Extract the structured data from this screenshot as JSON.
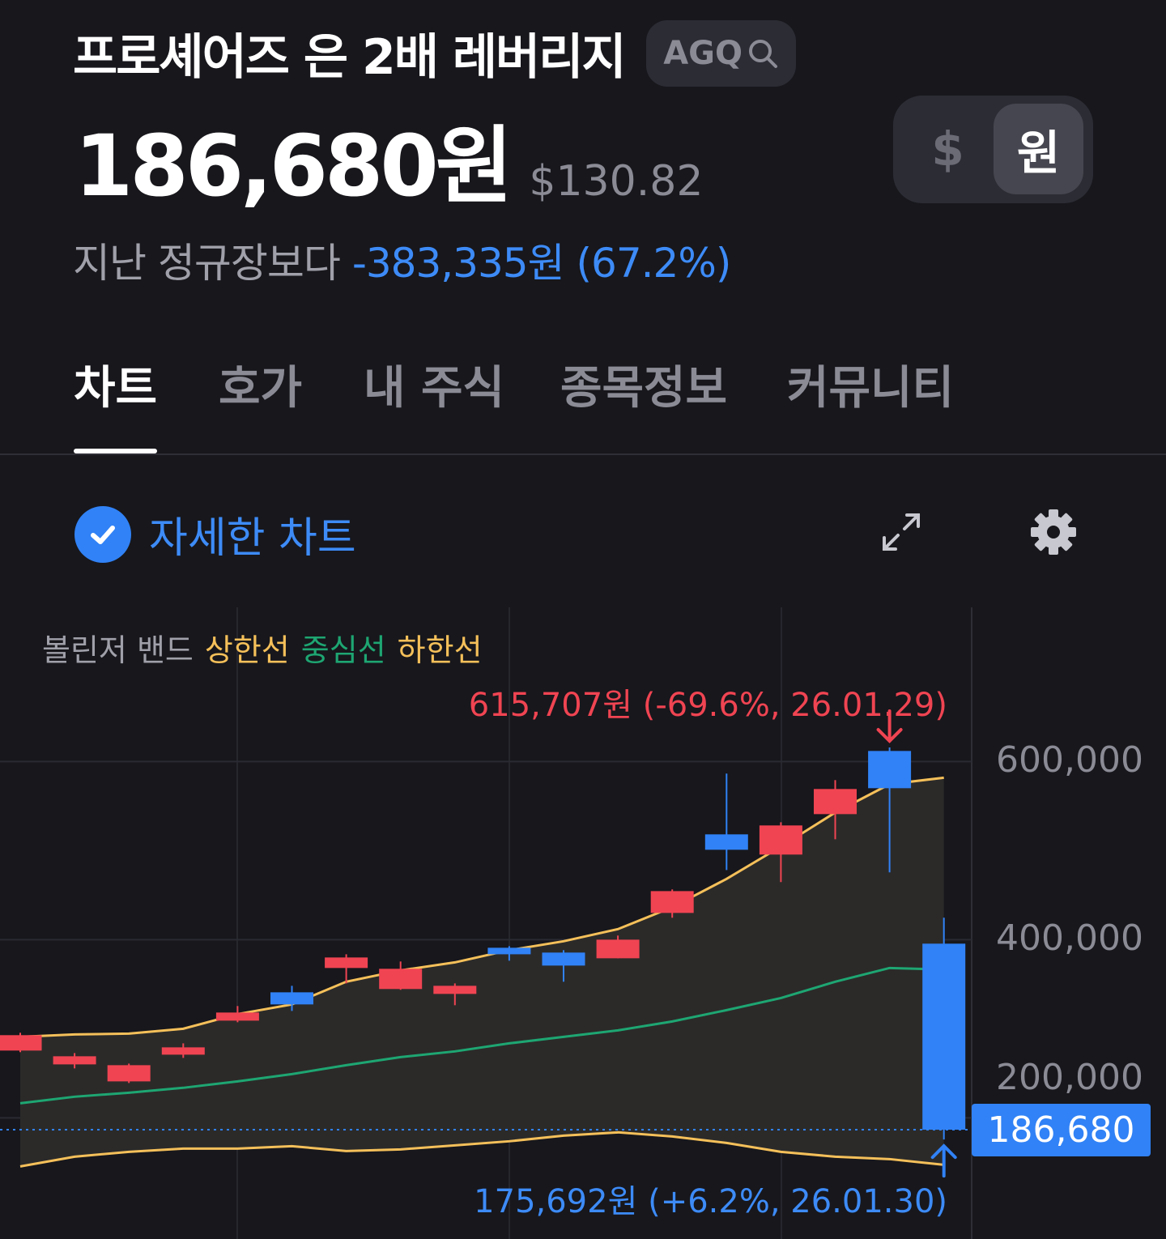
{
  "header": {
    "title": "프로셰어즈 은 2배 레버리지",
    "ticker": "AGQ",
    "price_krw": "186,680원",
    "price_usd": "$130.82",
    "currency_toggle": {
      "options": [
        "$",
        "원"
      ],
      "selected": "원"
    },
    "change_label": "지난 정규장보다",
    "change_value": "-383,335원 (67.2%)"
  },
  "tabs": [
    {
      "label": "차트",
      "active": true
    },
    {
      "label": "호가",
      "active": false
    },
    {
      "label": "내 주식",
      "active": false
    },
    {
      "label": "종목정보",
      "active": false
    },
    {
      "label": "커뮤니티",
      "active": false
    }
  ],
  "chart_controls": {
    "detail_label": "자세한 차트",
    "detail_checked": true,
    "expand_icon": "expand-icon",
    "settings_icon": "gear-icon"
  },
  "legend": {
    "title": "볼린저 밴드",
    "upper": "상한선",
    "middle": "중심선",
    "lower": "하한선"
  },
  "colors": {
    "up": "#f04452",
    "down": "#3182f6",
    "upper_band": "#f5c05a",
    "middle_band": "#1ea672",
    "lower_band": "#f5c05a",
    "accent": "#3182f6",
    "background": "#17171c"
  },
  "annotations": {
    "high": "615,707원 (-69.6%, 26.01.29)",
    "low": "175,692원 (+6.2%, 26.01.30)"
  },
  "current_price_label": "186,680",
  "chart_data": {
    "type": "candlestick",
    "ylim": [
      64000,
      773000
    ],
    "y_ticks": [
      {
        "value": 600000,
        "label": "600,000"
      },
      {
        "value": 400000,
        "label": "400,000"
      },
      {
        "value": 200000,
        "label": "200,000"
      }
    ],
    "grid": true,
    "current_price": 186680,
    "candles": [
      {
        "o": 275500,
        "h": 295500,
        "l": 273700,
        "c": 292800
      },
      {
        "o": 260000,
        "h": 272700,
        "l": 255500,
        "c": 269100
      },
      {
        "o": 240900,
        "h": 260900,
        "l": 239100,
        "c": 259100
      },
      {
        "o": 270900,
        "h": 283600,
        "l": 267300,
        "c": 279100
      },
      {
        "o": 309100,
        "h": 325500,
        "l": 307300,
        "c": 318200
      },
      {
        "o": 340900,
        "h": 348200,
        "l": 320000,
        "c": 327300
      },
      {
        "o": 368200,
        "h": 383600,
        "l": 350900,
        "c": 380000
      },
      {
        "o": 344600,
        "h": 375500,
        "l": 343700,
        "c": 367300
      },
      {
        "o": 339100,
        "h": 350900,
        "l": 326400,
        "c": 348200
      },
      {
        "o": 390900,
        "h": 392700,
        "l": 376400,
        "c": 383600
      },
      {
        "o": 385500,
        "h": 388200,
        "l": 352800,
        "c": 370900
      },
      {
        "o": 379100,
        "h": 404600,
        "l": 379100,
        "c": 400000
      },
      {
        "o": 430000,
        "h": 456400,
        "l": 424600,
        "c": 454500
      },
      {
        "o": 518200,
        "h": 586400,
        "l": 478200,
        "c": 500900
      },
      {
        "o": 495500,
        "h": 531800,
        "l": 464600,
        "c": 528200
      },
      {
        "o": 540900,
        "h": 579100,
        "l": 512700,
        "c": 569100
      },
      {
        "o": 611800,
        "h": 615707,
        "l": 475500,
        "c": 570000
      },
      {
        "o": 395500,
        "h": 424600,
        "l": 175692,
        "c": 186680
      }
    ],
    "bollinger": {
      "upper": [
        290900,
        293600,
        294500,
        300000,
        316400,
        327300,
        352800,
        365500,
        374500,
        388200,
        398200,
        411800,
        436400,
        468200,
        504500,
        542700,
        574500,
        581800
      ],
      "middle": [
        216400,
        223700,
        228200,
        233700,
        240900,
        249100,
        259100,
        268200,
        274600,
        283600,
        290900,
        298200,
        308200,
        320900,
        334500,
        352800,
        368200,
        366400
      ],
      "lower": [
        145500,
        156400,
        161800,
        165500,
        165500,
        168200,
        162700,
        164600,
        169100,
        173700,
        180000,
        183700,
        179100,
        171800,
        161800,
        156400,
        153700,
        147300
      ]
    }
  }
}
